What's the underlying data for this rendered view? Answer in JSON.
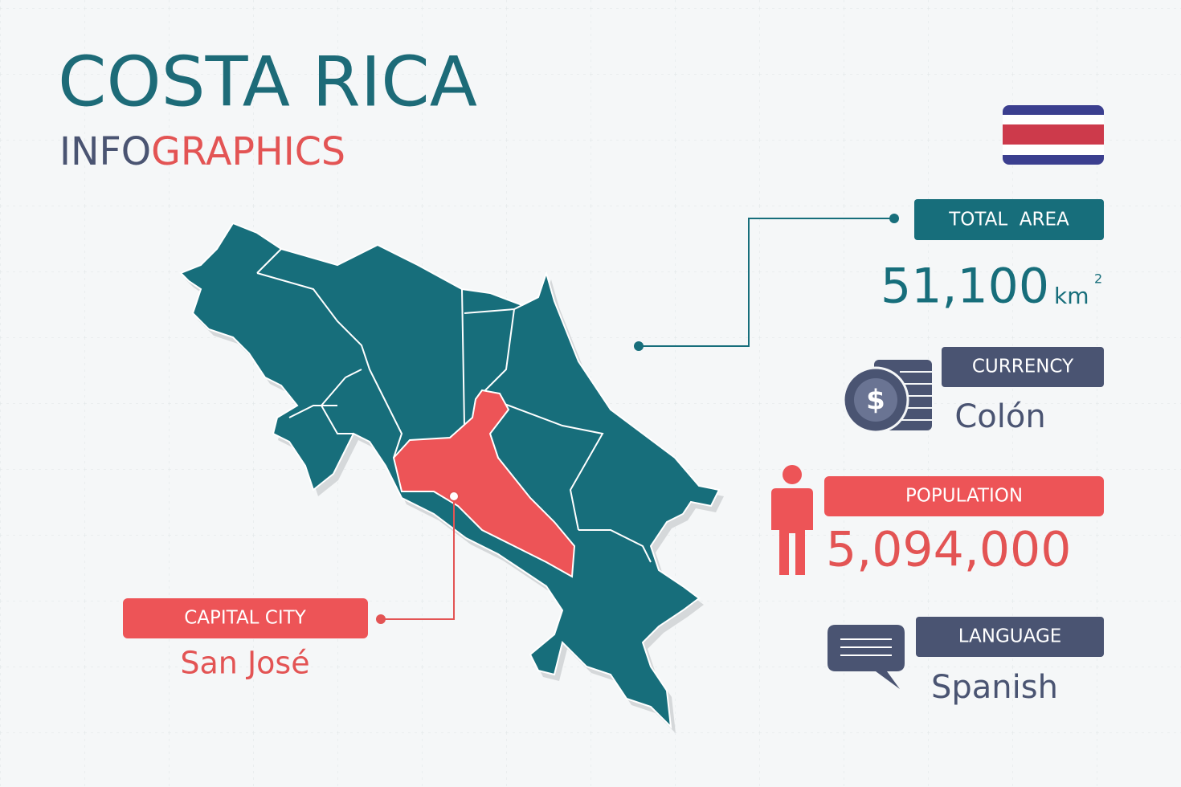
{
  "header": {
    "title": "COSTA RICA",
    "subtitle_part1": "INFO",
    "subtitle_part2": "GRAPHICS"
  },
  "total_area": {
    "label": "TOTAL  AREA",
    "value": "51,100",
    "unit": "km",
    "unit_exponent": "2"
  },
  "currency": {
    "label": "CURRENCY",
    "value": "Colón",
    "icon_symbol": "$"
  },
  "population": {
    "label": "POPULATION",
    "value": "5,094,000"
  },
  "language": {
    "label": "LANGUAGE",
    "value": "Spanish"
  },
  "capital": {
    "label": "CAPITAL CITY",
    "value": "San José"
  }
}
